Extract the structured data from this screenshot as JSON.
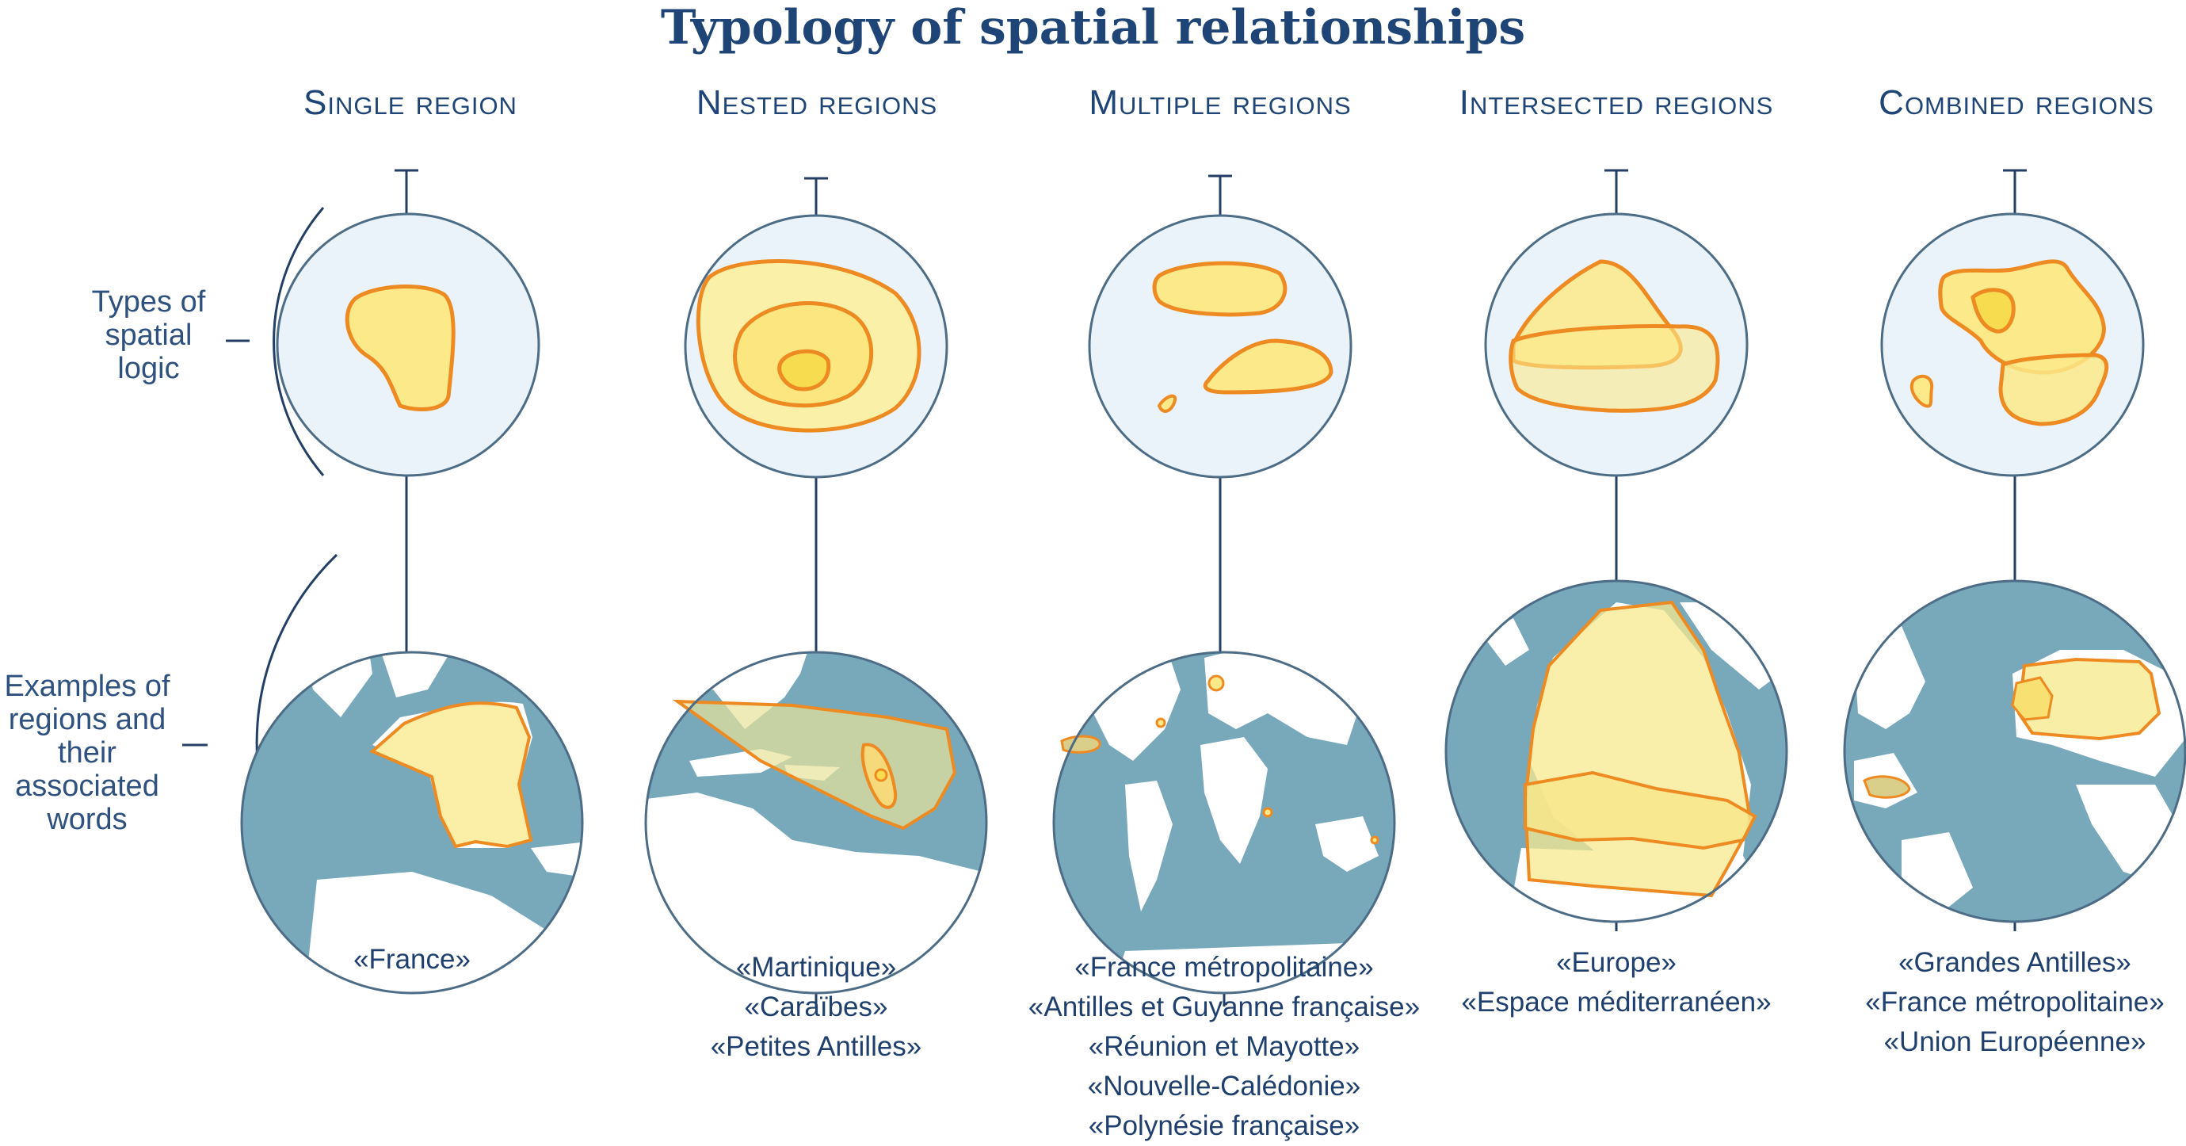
{
  "title": "Typology of spatial relationships",
  "row_labels": {
    "types": "Types of spatial logic",
    "examples": "Examples of regions and their associated words"
  },
  "columns": [
    {
      "heading": "Single region",
      "examples": [
        "«France»"
      ]
    },
    {
      "heading": "Nested regions",
      "examples": [
        "«Martinique»",
        "«Caraïbes»",
        "«Petites Antilles»"
      ]
    },
    {
      "heading": "Multiple regions",
      "examples": [
        "«France métropolitaine»",
        "«Antilles et Guyanne française»",
        "«Réunion et Mayotte»",
        "«Nouvelle-Calédonie»",
        "«Polynésie française»"
      ]
    },
    {
      "heading": "Intersected regions",
      "examples": [
        "«Europe»",
        "«Espace méditerranéen»"
      ]
    },
    {
      "heading": "Combined regions",
      "examples": [
        "«Grandes Antilles»",
        "«France métropolitaine»",
        "«Union Européenne»"
      ]
    }
  ],
  "colors": {
    "title": "#1f4577",
    "ocean": "#78a9bb",
    "land": "#ffffff",
    "abstract_circle": "#eaf3f9",
    "outline": "#4d6c85",
    "region_fill": "#fbe98a",
    "region_stroke": "#ee8a22"
  }
}
